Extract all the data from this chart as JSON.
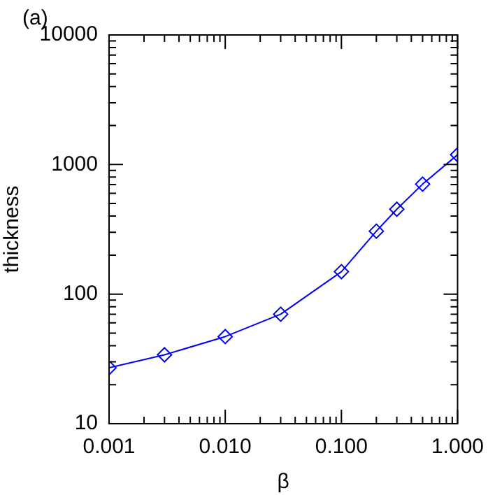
{
  "chart_data": {
    "type": "line",
    "xlabel": "β",
    "ylabel": "thickness",
    "annotations": [
      "(a)"
    ],
    "log": "xy",
    "marker": "diamond",
    "line_style": "solid",
    "grid": false,
    "legend": false,
    "x": [
      0.001,
      0.003,
      0.01,
      0.03,
      0.1,
      0.2,
      0.3,
      0.5,
      1
    ],
    "series": [
      {
        "color": "#0000ff",
        "values": [
          27,
          34,
          47,
          70,
          149,
          306,
          452,
          706,
          1190
        ]
      }
    ],
    "xlim": [
      0.001,
      1
    ],
    "ylim": [
      10,
      10000
    ],
    "xticks": [
      {
        "value": 0.001,
        "label": "0.001"
      },
      {
        "value": 0.002,
        "label": null
      },
      {
        "value": 0.003,
        "label": null
      },
      {
        "value": 0.004,
        "label": null
      },
      {
        "value": 0.005,
        "label": null
      },
      {
        "value": 0.006,
        "label": null
      },
      {
        "value": 0.007,
        "label": null
      },
      {
        "value": 0.008,
        "label": null
      },
      {
        "value": 0.009,
        "label": null
      },
      {
        "value": 0.01,
        "label": "0.010"
      },
      {
        "value": 0.02,
        "label": null
      },
      {
        "value": 0.03,
        "label": null
      },
      {
        "value": 0.04,
        "label": null
      },
      {
        "value": 0.05,
        "label": null
      },
      {
        "value": 0.06,
        "label": null
      },
      {
        "value": 0.07,
        "label": null
      },
      {
        "value": 0.08,
        "label": null
      },
      {
        "value": 0.09,
        "label": null
      },
      {
        "value": 0.1,
        "label": "0.100"
      },
      {
        "value": 0.2,
        "label": null
      },
      {
        "value": 0.3,
        "label": null
      },
      {
        "value": 0.4,
        "label": null
      },
      {
        "value": 0.5,
        "label": null
      },
      {
        "value": 0.6,
        "label": null
      },
      {
        "value": 0.7,
        "label": null
      },
      {
        "value": 0.8,
        "label": null
      },
      {
        "value": 0.9,
        "label": null
      },
      {
        "value": 1,
        "label": "1.000"
      }
    ],
    "yticks": [
      10,
      {
        "value": 20,
        "label": null
      },
      {
        "value": 30,
        "label": null
      },
      {
        "value": 40,
        "label": null
      },
      {
        "value": 50,
        "label": null
      },
      {
        "value": 60,
        "label": null
      },
      {
        "value": 70,
        "label": null
      },
      {
        "value": 80,
        "label": null
      },
      {
        "value": 90,
        "label": null
      },
      100,
      {
        "value": 200,
        "label": null
      },
      {
        "value": 300,
        "label": null
      },
      {
        "value": 400,
        "label": null
      },
      {
        "value": 500,
        "label": null
      },
      {
        "value": 600,
        "label": null
      },
      {
        "value": 700,
        "label": null
      },
      {
        "value": 800,
        "label": null
      },
      {
        "value": 900,
        "label": null
      },
      1000,
      {
        "value": 2000,
        "label": null
      },
      {
        "value": 3000,
        "label": null
      },
      {
        "value": 4000,
        "label": null
      },
      {
        "value": 5000,
        "label": null
      },
      {
        "value": 6000,
        "label": null
      },
      {
        "value": 7000,
        "label": null
      },
      {
        "value": 8000,
        "label": null
      },
      {
        "value": 9000,
        "label": null
      },
      10000
    ]
  }
}
